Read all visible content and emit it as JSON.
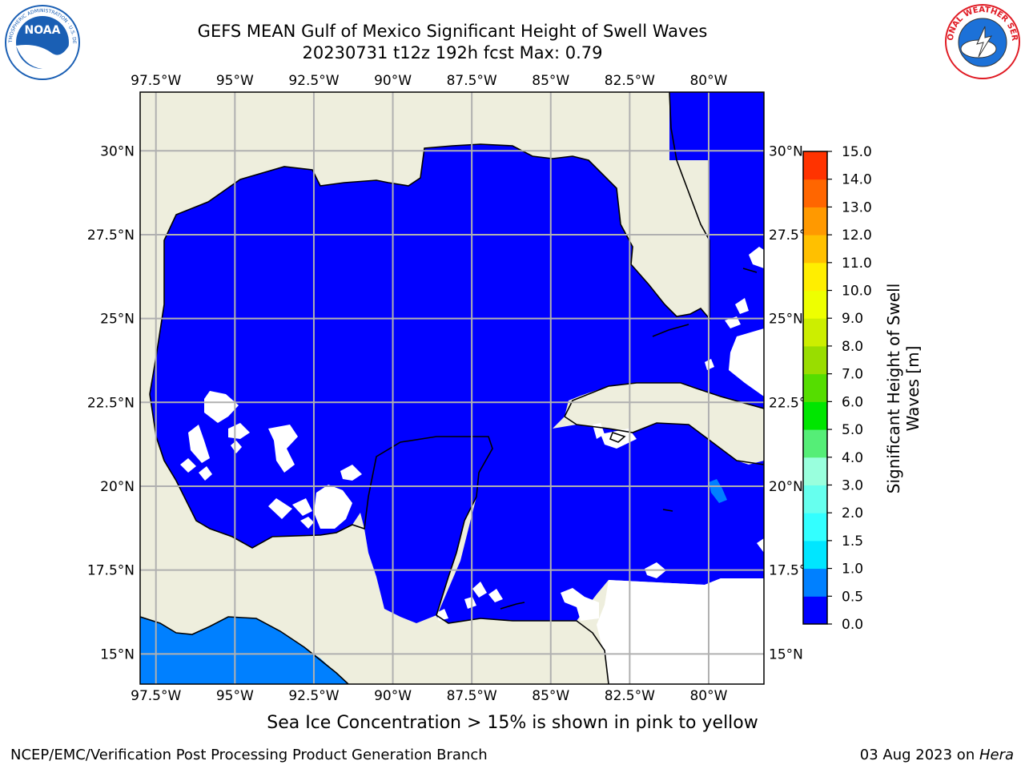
{
  "header": {
    "title_line1": "GEFS MEAN Gulf of Mexico Significant Height of Swell Waves",
    "title_line2": "20230731 t12z 192h fcst    Max: 0.79"
  },
  "logos": {
    "left": {
      "name": "NOAA",
      "ring_text": "NATIONAL OCEANIC AND ATMOSPHERIC ADMINISTRATION · U.S. DEPARTMENT OF COMMERCE",
      "colors": {
        "ring": "#ffffff",
        "field": "#1a5fb4",
        "bird": "#ffffff"
      }
    },
    "right": {
      "name": "NATIONAL WEATHER SERVICE",
      "colors": {
        "text": "#e01b24",
        "field": "#1c71d8"
      }
    }
  },
  "map": {
    "lon_labels": [
      "97.5°W",
      "95°W",
      "92.5°W",
      "90°W",
      "87.5°W",
      "85°W",
      "82.5°W",
      "80°W"
    ],
    "lon_values": [
      -97.5,
      -95,
      -92.5,
      -90,
      -87.5,
      -85,
      -82.5,
      -80
    ],
    "lat_labels": [
      "30°N",
      "27.5°N",
      "25°N",
      "22.5°N",
      "20°N",
      "17.5°N",
      "15°N"
    ],
    "lat_values": [
      30,
      27.5,
      25,
      22.5,
      20,
      17.5,
      15
    ],
    "extent": {
      "lon_min": -98,
      "lon_max": -78.25,
      "lat_min": 14.1,
      "lat_max": 31.75
    },
    "colors": {
      "land": "#eeeedd",
      "ocean_low": "#0000ff",
      "ocean_mid": "#0080ff",
      "grid": "#b0b0b0",
      "coast": "#000000"
    }
  },
  "colorbar": {
    "label": "Significant Height of Swell Waves [m]",
    "label_lines": [
      "Significant Height of Swell",
      "Waves [m]"
    ],
    "ticks": [
      "0.0",
      "0.5",
      "1.0",
      "1.5",
      "2.0",
      "3.0",
      "4.0",
      "5.0",
      "6.0",
      "7.0",
      "8.0",
      "9.0",
      "10.0",
      "11.0",
      "12.0",
      "13.0",
      "14.0",
      "15.0"
    ],
    "colors": [
      "#0000ff",
      "#0080ff",
      "#00e6ff",
      "#33ffff",
      "#66ffee",
      "#99ffdd",
      "#55ee77",
      "#00e600",
      "#55dd00",
      "#99dd00",
      "#ccee00",
      "#eeff00",
      "#ffee00",
      "#ffc000",
      "#ff9900",
      "#ff6600",
      "#ff3300",
      "#ff0000"
    ]
  },
  "note": "Sea Ice Concentration > 15% is shown in pink to yellow",
  "footer": {
    "left": "NCEP/EMC/Verification Post Processing Product Generation Branch",
    "date": "03 Aug 2023 on ",
    "host": "Hera"
  }
}
